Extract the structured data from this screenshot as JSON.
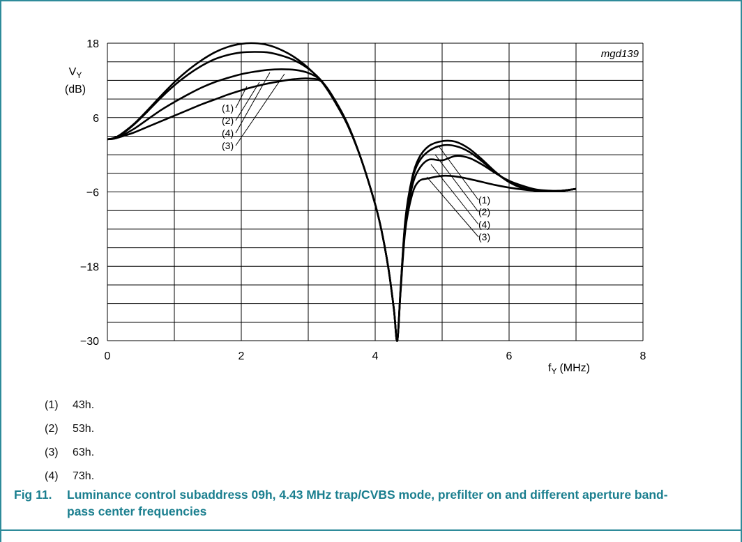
{
  "chart_data": {
    "type": "line",
    "figure_code": "mgd139",
    "ylabel_main": "V",
    "ylabel_sub": "Y",
    "ylabel_unit": "(dB)",
    "xlabel_main": "f",
    "xlabel_sub": "Y",
    "xlabel_unit": "(MHz)",
    "xlim": [
      0,
      8
    ],
    "ylim": [
      -30,
      18
    ],
    "x_ticks": [
      "0",
      "2",
      "4",
      "6",
      "8"
    ],
    "y_ticks": [
      "18",
      "6",
      "−6",
      "−18",
      "−30"
    ],
    "grid": true,
    "series": [
      {
        "name": "(1)",
        "x": [
          0,
          0.1,
          0.2,
          0.4,
          0.6,
          0.8,
          1.0,
          1.2,
          1.4,
          1.6,
          1.8,
          2.0,
          2.2,
          2.4,
          2.6,
          2.8,
          3.0,
          3.2,
          3.4,
          3.6,
          3.8,
          4.0,
          4.1,
          4.2,
          4.28,
          4.33,
          4.38,
          4.45,
          4.55,
          4.65,
          4.8,
          5.0,
          5.2,
          5.4,
          5.6,
          5.8,
          6.0,
          6.2,
          6.4,
          6.6,
          6.8,
          7.0
        ],
        "y": [
          2.5,
          2.7,
          3.3,
          5.0,
          7.2,
          9.5,
          11.7,
          13.6,
          15.2,
          16.5,
          17.4,
          17.9,
          18.0,
          17.7,
          16.9,
          15.7,
          14.0,
          11.8,
          8.5,
          4.5,
          -1.0,
          -8.0,
          -12.5,
          -18.5,
          -25.0,
          -30.0,
          -21.5,
          -10.5,
          -3.8,
          -0.6,
          1.4,
          2.2,
          2.1,
          1.0,
          -0.8,
          -2.8,
          -4.4,
          -5.4,
          -5.8,
          -5.9,
          -5.8,
          -5.5
        ]
      },
      {
        "name": "(2)",
        "x": [
          0,
          0.1,
          0.2,
          0.4,
          0.6,
          0.8,
          1.0,
          1.2,
          1.4,
          1.6,
          1.8,
          2.0,
          2.2,
          2.4,
          2.6,
          2.8,
          3.0,
          3.2,
          3.4,
          3.6,
          3.8,
          4.0,
          4.1,
          4.2,
          4.28,
          4.33,
          4.38,
          4.45,
          4.55,
          4.65,
          4.8,
          5.0,
          5.2,
          5.4,
          5.6,
          5.8,
          6.0,
          6.2,
          6.4,
          6.6,
          6.8,
          7.0
        ],
        "y": [
          2.5,
          2.7,
          3.2,
          4.9,
          7.0,
          9.2,
          11.2,
          12.9,
          14.3,
          15.4,
          16.1,
          16.5,
          16.6,
          16.5,
          16.0,
          15.2,
          13.9,
          11.9,
          8.6,
          4.5,
          -1.0,
          -8.0,
          -12.5,
          -18.5,
          -25.0,
          -30.0,
          -21.5,
          -10.8,
          -4.2,
          -1.2,
          0.6,
          1.5,
          1.4,
          0.5,
          -1.1,
          -2.9,
          -4.4,
          -5.3,
          -5.8,
          -5.9,
          -5.8,
          -5.5
        ]
      },
      {
        "name": "(4)",
        "x": [
          0,
          0.1,
          0.2,
          0.4,
          0.6,
          0.8,
          1.0,
          1.2,
          1.4,
          1.6,
          1.8,
          2.0,
          2.2,
          2.4,
          2.6,
          2.8,
          3.0,
          3.2,
          3.4,
          3.6,
          3.8,
          4.0,
          4.1,
          4.2,
          4.28,
          4.33,
          4.38,
          4.45,
          4.55,
          4.65,
          4.8,
          5.0,
          5.2,
          5.4,
          5.6,
          5.8,
          6.0,
          6.2,
          6.4,
          6.6,
          6.8,
          7.0
        ],
        "y": [
          2.5,
          2.6,
          3.0,
          4.2,
          5.7,
          7.2,
          8.5,
          9.7,
          10.8,
          11.7,
          12.4,
          13.0,
          13.4,
          13.7,
          13.8,
          13.7,
          13.2,
          11.9,
          8.7,
          4.6,
          -1.0,
          -8.0,
          -12.5,
          -18.5,
          -25.0,
          -30.0,
          -21.8,
          -11.5,
          -5.2,
          -2.4,
          -0.8,
          -0.9,
          -0.2,
          -0.5,
          -1.6,
          -3.0,
          -4.2,
          -5.0,
          -5.6,
          -5.8,
          -5.8,
          -5.5
        ]
      },
      {
        "name": "(3)",
        "x": [
          0,
          0.1,
          0.2,
          0.4,
          0.6,
          0.8,
          1.0,
          1.2,
          1.4,
          1.6,
          1.8,
          2.0,
          2.2,
          2.4,
          2.6,
          2.8,
          3.0,
          3.2,
          3.4,
          3.6,
          3.8,
          4.0,
          4.1,
          4.2,
          4.28,
          4.33,
          4.38,
          4.45,
          4.55,
          4.65,
          4.8,
          5.0,
          5.2,
          5.4,
          5.6,
          5.8,
          6.0,
          6.2,
          6.4,
          6.6,
          6.8,
          7.0
        ],
        "y": [
          2.5,
          2.6,
          2.9,
          3.6,
          4.5,
          5.4,
          6.3,
          7.2,
          8.1,
          8.9,
          9.7,
          10.4,
          11.0,
          11.5,
          11.9,
          12.2,
          12.3,
          11.8,
          8.8,
          4.7,
          -1.0,
          -8.0,
          -12.5,
          -18.5,
          -25.0,
          -30.0,
          -22.0,
          -12.2,
          -6.5,
          -4.3,
          -3.8,
          -3.4,
          -3.5,
          -3.9,
          -4.4,
          -4.9,
          -5.3,
          -5.6,
          -5.8,
          -5.9,
          -5.8,
          -5.5
        ]
      }
    ],
    "callouts_left": [
      "(1)",
      "(2)",
      "(4)",
      "(3)"
    ],
    "callouts_right": [
      "(1)",
      "(2)",
      "(4)",
      "(3)"
    ]
  },
  "legend": [
    {
      "num": "(1)",
      "text": "43h."
    },
    {
      "num": "(2)",
      "text": "53h."
    },
    {
      "num": "(3)",
      "text": "63h."
    },
    {
      "num": "(4)",
      "text": "73h."
    }
  ],
  "caption": {
    "fig": "Fig 11.",
    "text": "Luminance control subaddress 09h, 4.43 MHz trap/CVBS mode, prefilter on and different aperture band-pass center frequencies"
  },
  "colors": {
    "accent": "#1b7f8f",
    "line": "#000000",
    "grid": "#000000"
  }
}
